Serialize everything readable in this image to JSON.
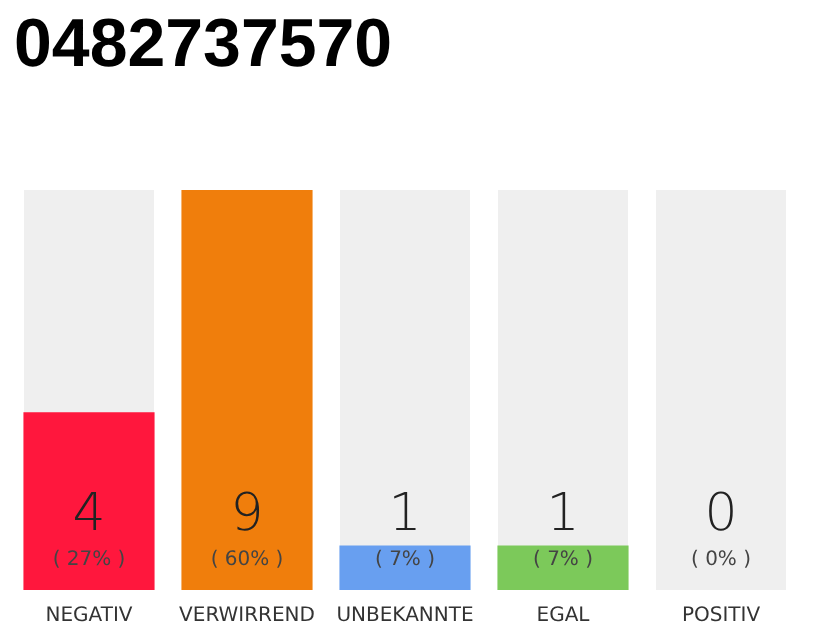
{
  "chart_data": {
    "type": "bar",
    "title": "0482737570",
    "categories": [
      "NEGATIV",
      "VERWIRREND",
      "UNBEKANNTE",
      "EGAL",
      "POSITIV"
    ],
    "values": [
      4,
      9,
      1,
      1,
      0
    ],
    "colors": [
      "#ff173d",
      "#f07e0c",
      "#689ff0",
      "#7cc95a",
      "#22a845"
    ],
    "value_labels": [
      "4\n( 27% )",
      "9\n( 60% )",
      "1\n( 7% )",
      "1\n( 7% )",
      "0\n( 0% )"
    ]
  }
}
